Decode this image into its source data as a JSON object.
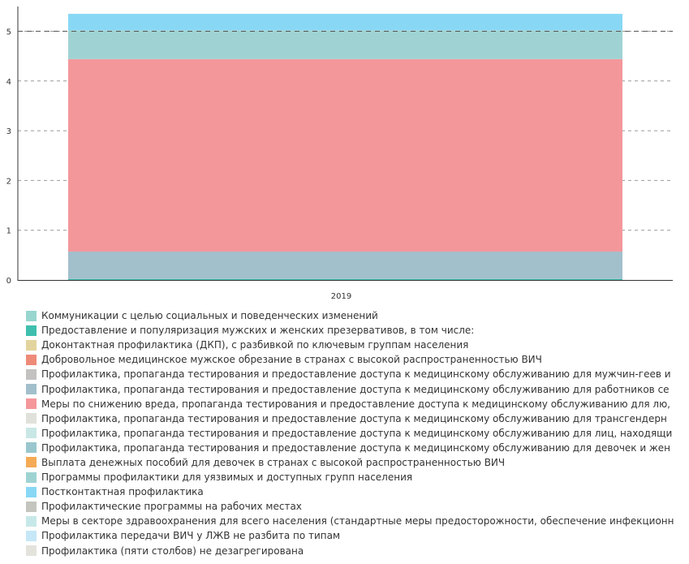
{
  "chart_data": {
    "type": "bar",
    "stacked": true,
    "categories": [
      "2019"
    ],
    "ylim": [
      0,
      5.35
    ],
    "yticks": [
      0,
      1,
      2,
      3,
      4,
      5
    ],
    "grid": true,
    "reference_line": 5,
    "legend_position": "bottom",
    "series": [
      {
        "name": "Коммуникации с целью социальных и поведенческих изменений",
        "color": "#98d6cf",
        "values": [
          0
        ]
      },
      {
        "name": "Предоставление и популяризация мужских и женских презервативов, в том числе:",
        "color": "#3fbfae",
        "values": [
          0.02
        ]
      },
      {
        "name": "Доконтактная профилактика (ДКП), с разбивкой по ключевым группам населения",
        "color": "#e3d49e",
        "values": [
          0
        ]
      },
      {
        "name": "Добровольное медицинское мужское обрезание в странах с высокой распространенностью ВИЧ",
        "color": "#ee8a78",
        "values": [
          0
        ]
      },
      {
        "name": "Профилактика, пропаганда тестирования и предоставление доступа к медицинскому обслуживанию для мужчин-геев и",
        "color": "#c4c2c0",
        "values": [
          0
        ]
      },
      {
        "name": "Профилактика, пропаганда тестирования и предоставление доступа к медицинскому обслуживанию для работников се",
        "color": "#a2bfcc",
        "values": [
          0.55
        ]
      },
      {
        "name": "Меры по снижению вреда, пропаганда тестирования и предоставление доступа к медицинскому обслуживанию для лю,",
        "color": "#f4979b",
        "values": [
          3.87
        ]
      },
      {
        "name": "Профилактика, пропаганда тестирования и предоставление доступа к медицинскому обслуживанию для трансгендерн",
        "color": "#e1e1dc",
        "values": [
          0
        ]
      },
      {
        "name": "Профилактика, пропаганда тестирования и предоставление доступа к медицинскому обслуживанию для лиц, находящи",
        "color": "#c9e7e5",
        "values": [
          0
        ]
      },
      {
        "name": "Профилактика, пропаганда тестирования и предоставление доступа к медицинскому обслуживанию для девочек и жен",
        "color": "#99c7cd",
        "values": [
          0
        ]
      },
      {
        "name": "Выплата денежных пособий для девочек в странах с высокой распространенностью ВИЧ",
        "color": "#f5aa55",
        "values": [
          0
        ]
      },
      {
        "name": "Программы профилактики для уязвимых и доступных групп населения",
        "color": "#9fd3d3",
        "values": [
          0.58
        ]
      },
      {
        "name": "Постконтактная профилактика",
        "color": "#88d8f5",
        "values": [
          0.33
        ]
      },
      {
        "name": "Профилактические программы на рабочих местах",
        "color": "#c5c5bf",
        "values": [
          0
        ]
      },
      {
        "name": "Меры в секторе здравоохранения для всего населения (стандартные меры предосторожности, обеспечение инфекционн",
        "color": "#c7e8e8",
        "values": [
          0
        ]
      },
      {
        "name": "Профилактика передачи ВИЧ у ЛЖВ не разбита по типам",
        "color": "#c5e7f7",
        "values": [
          0
        ]
      },
      {
        "name": "Профилактика (пяти столбов) не дезагрегирована",
        "color": "#e3e3dc",
        "values": [
          0
        ]
      }
    ]
  }
}
